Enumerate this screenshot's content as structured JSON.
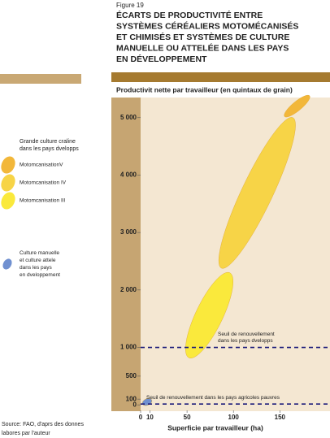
{
  "chart_data": {
    "type": "zones",
    "figure_label": "Figure 19",
    "title": [
      "ÉCARTS DE PRODUCTIVITÉ ENTRE",
      "SYSTÈMES CÉRÉALIERS MOTOMÉCANISÉS",
      "ET CHIMISÉS ET SYSTÈMES DE CULTURE",
      "MANUELLE OU ATTELÉE DANS LES PAYS",
      "EN DÉVELOPPEMENT"
    ],
    "y_label": "Productivit nette par travailleur (en quintaux de grain)",
    "x_label": "Superficie par travailleur (ha)",
    "legend_title": [
      "Grande culture craline",
      "dans les pays dvelopps"
    ],
    "series": [
      {
        "name": [
          "MotomcanisationV"
        ],
        "color": "#f2b73a",
        "x": [
          155,
          182
        ],
        "y": [
          5020,
          5380
        ]
      },
      {
        "name": [
          "Motomcanisation IV"
        ],
        "color": "#f7d447",
        "x": [
          87,
          164
        ],
        "y": [
          2380,
          5000
        ]
      },
      {
        "name": [
          "Motomcanisation III"
        ],
        "color": "#fae93c",
        "x": [
          52,
          96
        ],
        "y": [
          820,
          2300
        ]
      },
      {
        "name": [
          "Culture manuelle",
          "et culture attele",
          "dans les pays",
          "en dveloppement"
        ],
        "color": "#7090d0",
        "x": [
          2,
          12
        ],
        "y": [
          15,
          85
        ]
      }
    ],
    "thresholds": [
      {
        "value": 1000,
        "label": [
          "Seuil de renouvellement",
          "dans les pays dvelopps"
        ]
      },
      {
        "value": 15,
        "label": [
          "Seuil de renouvellement dans les pays agricoles pauvres"
        ]
      }
    ],
    "xlim": [
      0,
      204
    ],
    "ylim": [
      -110,
      5350
    ],
    "xticks": [
      0,
      10,
      50,
      100,
      150
    ],
    "yticks": [
      0,
      100,
      500,
      {
        "value": 1000,
        "label": "1 000"
      },
      {
        "value": 2000,
        "label": "2 000"
      },
      {
        "value": 3000,
        "label": "3 000"
      },
      {
        "value": 4000,
        "label": "4 000"
      },
      {
        "value": 5000,
        "label": "5 000"
      }
    ],
    "source": [
      "Source: FAO, d'aprs des donnes",
      "labores par l'auteur"
    ]
  }
}
